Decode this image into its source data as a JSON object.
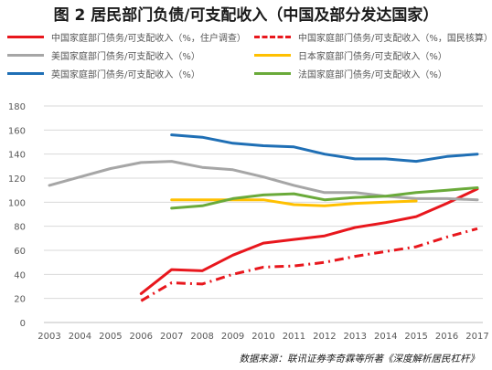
{
  "figure": {
    "title": "图 2 居民部门负债/可支配收入（中国及部分发达国家）",
    "source": "数据来源：联讯证券李奇霖等所著《深度解析居民杠杆》"
  },
  "colors": {
    "china_household": "#e8171d",
    "china_pbc": "#e8171d",
    "usa": "#a6a6a6",
    "japan": "#ffc000",
    "uk": "#1f6fb5",
    "france": "#6aaa3a",
    "grid": "#d9d9d9",
    "axis_text": "#595959"
  },
  "chart_data": {
    "type": "line",
    "title": "图 2 居民部门负债/可支配收入（中国及部分发达国家）",
    "xlabel": "",
    "ylabel": "",
    "xlim": [
      2003,
      2017
    ],
    "ylim": [
      0,
      180
    ],
    "x_ticks": [
      "2003",
      "2004",
      "2005",
      "2006",
      "2007",
      "2008",
      "2009",
      "2010",
      "2011",
      "2012",
      "2013",
      "2014",
      "2015",
      "2016",
      "2017"
    ],
    "y_ticks": [
      "0",
      "20",
      "40",
      "60",
      "80",
      "100",
      "120",
      "140",
      "160",
      "180"
    ],
    "grid": "horizontal",
    "legend_position": "top",
    "series": [
      {
        "name": "中国家庭部门债务/可支配收入（%，住户调查）",
        "color_key": "china_household",
        "line_style": "solid",
        "x": [
          2006,
          2007,
          2008,
          2009,
          2010,
          2011,
          2012,
          2013,
          2014,
          2015,
          2016,
          2017
        ],
        "values": [
          24,
          44,
          43,
          56,
          66,
          69,
          72,
          79,
          83,
          88,
          99,
          111
        ]
      },
      {
        "name": "中国家庭部门债务/可支配收入（%，国民核算）",
        "color_key": "china_pbc",
        "line_style": "dashdot",
        "x": [
          2006,
          2007,
          2008,
          2009,
          2010,
          2011,
          2012,
          2013,
          2014,
          2015,
          2016,
          2017
        ],
        "values": [
          18,
          33,
          32,
          40,
          46,
          47,
          50,
          55,
          59,
          63,
          71,
          78
        ]
      },
      {
        "name": "美国家庭部门债务/可支配收入（%）",
        "color_key": "usa",
        "line_style": "solid",
        "x": [
          2003,
          2004,
          2005,
          2006,
          2007,
          2008,
          2009,
          2010,
          2011,
          2012,
          2013,
          2014,
          2015,
          2016,
          2017
        ],
        "values": [
          114,
          121,
          128,
          133,
          134,
          129,
          127,
          121,
          114,
          108,
          108,
          105,
          103,
          103,
          102
        ]
      },
      {
        "name": "日本家庭部门债务/可支配收入（%）",
        "color_key": "japan",
        "line_style": "solid",
        "x": [
          2007,
          2008,
          2009,
          2010,
          2011,
          2012,
          2013,
          2014,
          2015
        ],
        "values": [
          102,
          102,
          102,
          102,
          98,
          97,
          99,
          100,
          101
        ]
      },
      {
        "name": "英国家庭部门债务/可支配收入（%）",
        "color_key": "uk",
        "line_style": "solid",
        "x": [
          2007,
          2008,
          2009,
          2010,
          2011,
          2012,
          2013,
          2014,
          2015,
          2016,
          2017
        ],
        "values": [
          156,
          154,
          149,
          147,
          146,
          140,
          136,
          136,
          134,
          138,
          140
        ]
      },
      {
        "name": "法国家庭部门债务/可支配收入（%）",
        "color_key": "france",
        "line_style": "solid",
        "x": [
          2007,
          2008,
          2009,
          2010,
          2011,
          2012,
          2013,
          2014,
          2015,
          2016,
          2017
        ],
        "values": [
          95,
          97,
          103,
          106,
          107,
          102,
          104,
          105,
          108,
          110,
          112
        ]
      }
    ]
  }
}
